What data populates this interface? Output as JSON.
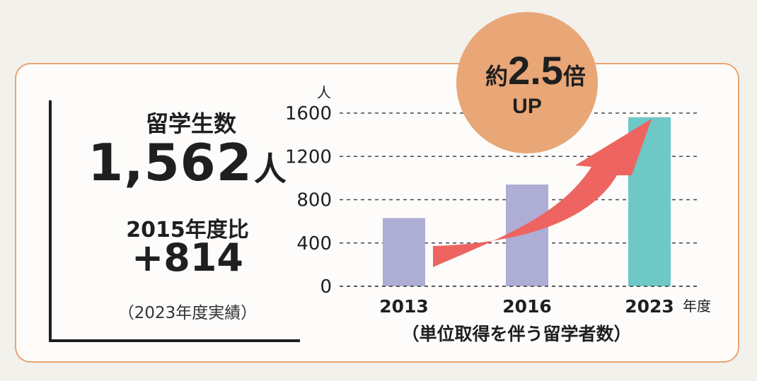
{
  "summary": {
    "title": "留学生数",
    "count": "1,562",
    "count_unit": "人",
    "compare_label": "2015年度比",
    "increase": "+814",
    "note": "（2023年度実績）"
  },
  "badge": {
    "line1_prefix": "約",
    "line1_value": "2.5",
    "line1_suffix": "倍",
    "line2": "UP",
    "color": "#e9a676"
  },
  "colors": {
    "card_border": "#e9a370",
    "arrow": "#ee6460"
  },
  "chart_data": {
    "type": "bar",
    "categories": [
      "2013",
      "2016",
      "2023"
    ],
    "values": [
      630,
      940,
      1562
    ],
    "bar_colors": [
      "#aeadd6",
      "#aeadd6",
      "#6dc8c6"
    ],
    "ylim": [
      0,
      1600
    ],
    "yticks": [
      0,
      400,
      800,
      1200,
      1600
    ],
    "ylabel": "人",
    "xlabel": "年度",
    "caption": "（単位取得を伴う留学者数）",
    "grid": true,
    "grid_style": "dashed"
  }
}
